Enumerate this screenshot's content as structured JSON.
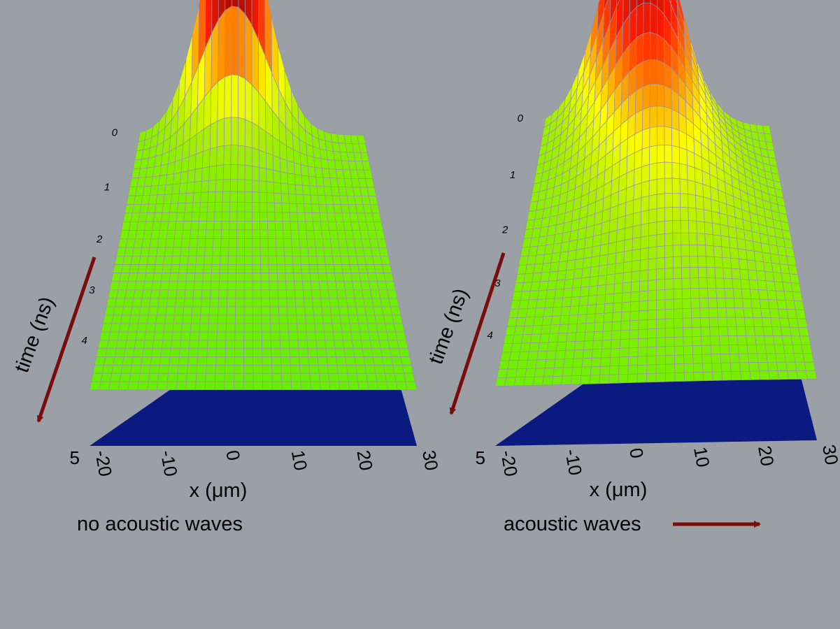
{
  "colors": {
    "background": "#9aa0a5",
    "arrow": "#7a0c0c",
    "base": "#0a1a80",
    "grid": "#9a8fb0",
    "colormap": [
      "#00ff60",
      "#44ee00",
      "#aaee00",
      "#ffff00",
      "#ff8800",
      "#ff1a00",
      "#5a0000"
    ]
  },
  "chart_data": [
    {
      "type": "surface",
      "caption": "no acoustic waves",
      "xlabel": "x (μm)",
      "ylabel": "time (ns)",
      "x_ticks": [
        "-20",
        "-10",
        "0",
        "10",
        "20",
        "30"
      ],
      "time_ticks": [
        "0",
        "1",
        "2",
        "3",
        "4",
        "5"
      ],
      "xlim": [
        -20,
        30
      ],
      "tlim": [
        0,
        5
      ],
      "zlim": [
        0,
        1
      ],
      "peak_x": 1,
      "peak_height": 1.0,
      "peak_width_um": 7,
      "decay_ns": 0.3,
      "shift_um_per_ns": 0,
      "background_level": 0.33
    },
    {
      "type": "surface",
      "caption": "acoustic waves",
      "xlabel": "x (μm)",
      "ylabel": "time (ns)",
      "x_ticks": [
        "-20",
        "-10",
        "0",
        "10",
        "20",
        "30"
      ],
      "time_ticks": [
        "0",
        "1",
        "2",
        "3",
        "4",
        "5"
      ],
      "xlim": [
        -20,
        30
      ],
      "tlim": [
        0,
        5
      ],
      "zlim": [
        0,
        1
      ],
      "peak_x": 1,
      "peak_height": 1.0,
      "peak_width_um": 8,
      "decay_ns": 1.2,
      "shift_um_per_ns": 3.5,
      "background_level": 0.35
    }
  ]
}
